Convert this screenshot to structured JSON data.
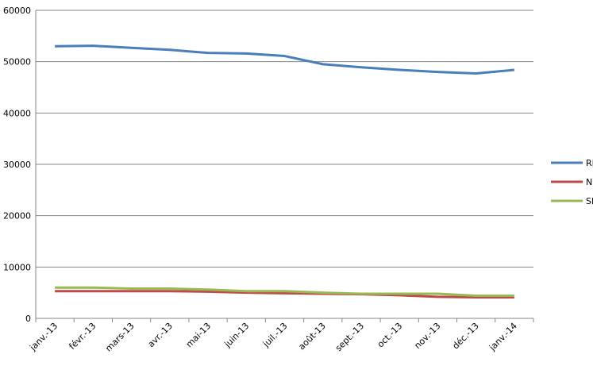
{
  "chart_data": {
    "type": "line",
    "categories": [
      "janv.-13",
      "févr.-13",
      "mars-13",
      "avr.-13",
      "mai-13",
      "juin-13",
      "juil.-13",
      "août-13",
      "sept.-13",
      "oct.-13",
      "nov.-13",
      "déc.-13",
      "janv.-14"
    ],
    "series": [
      {
        "name": "RR",
        "color": "#4a7ebb",
        "values": [
          53000,
          53100,
          52700,
          52300,
          51700,
          51600,
          51100,
          49500,
          48900,
          48400,
          48000,
          47700,
          48400
        ]
      },
      {
        "name": "NK",
        "color": "#be4b48",
        "values": [
          5300,
          5300,
          5300,
          5300,
          5200,
          5000,
          4900,
          4800,
          4700,
          4500,
          4200,
          4100,
          4100
        ]
      },
      {
        "name": "SK",
        "color": "#98b954",
        "values": [
          6000,
          6000,
          5800,
          5800,
          5600,
          5300,
          5300,
          5000,
          4800,
          4800,
          4800,
          4400,
          4400
        ]
      }
    ],
    "ylim": [
      0,
      60000
    ],
    "yticks": [
      0,
      10000,
      20000,
      30000,
      40000,
      50000,
      60000
    ],
    "grid": true,
    "legend": "right"
  }
}
